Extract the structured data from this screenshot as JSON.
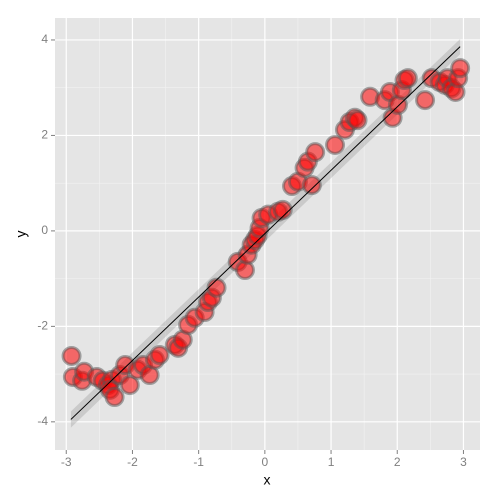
{
  "chart_data": {
    "type": "scatter",
    "x_label": "x",
    "y_label": "y",
    "xlim": [
      -3.17,
      3.25
    ],
    "ylim": [
      -4.59,
      4.46
    ],
    "xticks": [
      -3,
      -2,
      -1,
      0,
      1,
      2,
      3
    ],
    "yticks": [
      -4,
      -2,
      0,
      2,
      4
    ],
    "grid": true,
    "series": [
      {
        "color": "#ff0000",
        "x": [
          -2.92,
          -2.9,
          -2.76,
          -2.73,
          -2.54,
          -2.45,
          -2.37,
          -2.31,
          -2.34,
          -2.27,
          -2.19,
          -2.11,
          -2.04,
          -1.92,
          -1.84,
          -1.74,
          -1.66,
          -1.59,
          -1.36,
          -1.31,
          -1.24,
          -1.16,
          -1.06,
          -0.91,
          -0.86,
          -0.8,
          -0.73,
          -0.41,
          -0.3,
          -0.26,
          -0.2,
          -0.15,
          -0.11,
          -0.08,
          -0.05,
          0.05,
          0.2,
          0.27,
          0.41,
          0.5,
          0.6,
          0.65,
          0.71,
          0.76,
          1.06,
          1.21,
          1.28,
          1.36,
          1.4,
          1.59,
          1.81,
          1.89,
          1.93,
          2.01,
          2.07,
          2.11,
          2.16,
          2.42,
          2.52,
          2.64,
          2.72,
          2.76,
          2.82,
          2.88,
          2.92,
          2.95
        ],
        "values": [
          -2.62,
          -3.06,
          -3.14,
          -2.95,
          -3.06,
          -3.14,
          -3.23,
          -3.12,
          -3.33,
          -3.48,
          -3.02,
          -2.81,
          -3.23,
          -2.91,
          -2.81,
          -3.02,
          -2.7,
          -2.6,
          -2.39,
          -2.45,
          -2.28,
          -1.97,
          -1.82,
          -1.7,
          -1.49,
          -1.4,
          -1.19,
          -0.65,
          -0.82,
          -0.5,
          -0.29,
          -0.19,
          -0.1,
          0.06,
          0.27,
          0.34,
          0.4,
          0.44,
          0.94,
          1.03,
          1.32,
          1.45,
          0.96,
          1.65,
          1.8,
          2.12,
          2.28,
          2.37,
          2.32,
          2.81,
          2.74,
          2.91,
          2.37,
          2.64,
          2.95,
          3.16,
          3.2,
          2.74,
          3.2,
          3.12,
          3.06,
          3.2,
          2.99,
          2.91,
          3.2,
          3.41
        ]
      }
    ],
    "fit": {
      "x": [
        -2.93,
        2.95
      ],
      "values": [
        -3.95,
        3.86
      ],
      "lower": [
        -4.12,
        3.7
      ],
      "upper": [
        -3.78,
        4.02
      ]
    }
  }
}
